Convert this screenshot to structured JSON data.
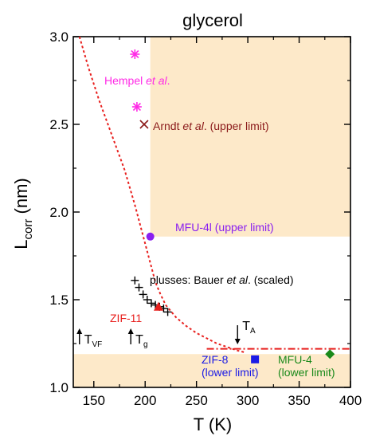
{
  "chart_data": {
    "type": "scatter",
    "title": "glycerol",
    "xlabel": "T (K)",
    "ylabel_main": "L",
    "ylabel_sub": "corr",
    "ylabel_unit": " (nm)",
    "xlim": [
      130,
      400
    ],
    "ylim": [
      1.0,
      3.0
    ],
    "xticks": [
      150,
      200,
      250,
      300,
      350,
      400
    ],
    "yticks": [
      1.0,
      1.5,
      2.0,
      2.5,
      3.0
    ],
    "xtick_labels": [
      "150",
      "200",
      "250",
      "300",
      "350",
      "400"
    ],
    "ytick_labels": [
      "1.0",
      "1.5",
      "2.0",
      "2.5",
      "3.0"
    ],
    "colors": {
      "shade": "#fde9c9",
      "fit": "#e8201e",
      "hempel": "#ff2be6",
      "arndt": "#8b1a1a",
      "mfu4l": "#8a1ff0",
      "bauer": "#000000",
      "zif11": "#e8201e",
      "zif8": "#1a1ae6",
      "mfu4": "#1b8a1b"
    },
    "shaded_regions": [
      {
        "x": [
          205,
          400
        ],
        "y": [
          1.86,
          3.0
        ]
      },
      {
        "x": [
          130,
          400
        ],
        "y": [
          1.0,
          1.19
        ]
      }
    ],
    "fit_curve": {
      "x": [
        136,
        140,
        145,
        150,
        155,
        160,
        165,
        170,
        175,
        180,
        185,
        190,
        195,
        200,
        205,
        210,
        215,
        220,
        230,
        240,
        250,
        260,
        270,
        280,
        290,
        297
      ],
      "y": [
        3.0,
        2.92,
        2.82,
        2.73,
        2.64,
        2.56,
        2.48,
        2.4,
        2.32,
        2.24,
        2.14,
        2.04,
        1.93,
        1.82,
        1.71,
        1.6,
        1.53,
        1.47,
        1.4,
        1.35,
        1.31,
        1.28,
        1.25,
        1.23,
        1.21,
        1.2
      ]
    },
    "fit_line_extension": {
      "x": [
        260,
        400
      ],
      "y": [
        1.22,
        1.22
      ]
    },
    "series": [
      {
        "name": "Hempel et al.",
        "marker": "asterisk",
        "x": [
          190,
          192
        ],
        "y": [
          2.9,
          2.6
        ]
      },
      {
        "name": "Arndt et al. (upper limit)",
        "marker": "x",
        "x": [
          199
        ],
        "y": [
          2.5
        ]
      },
      {
        "name": "MFU-4l (upper limit)",
        "marker": "circle",
        "x": [
          205
        ],
        "y": [
          1.86
        ]
      },
      {
        "name": "plusses: Bauer et al. (scaled)",
        "marker": "plus",
        "x": [
          190,
          194,
          198,
          202,
          206,
          210,
          214,
          218,
          222
        ],
        "y": [
          1.61,
          1.57,
          1.53,
          1.5,
          1.48,
          1.47,
          1.46,
          1.45,
          1.43
        ]
      },
      {
        "name": "ZIF-11",
        "marker": "triangle",
        "x": [
          213
        ],
        "y": [
          1.46
        ]
      },
      {
        "name": "ZIF-8",
        "marker": "square",
        "x": [
          307
        ],
        "y": [
          1.16
        ]
      },
      {
        "name": "MFU-4",
        "marker": "diamond",
        "x": [
          380
        ],
        "y": [
          1.19
        ]
      }
    ],
    "annotations": {
      "hempel": {
        "pre": "Hempel ",
        "em": "et al",
        "post": "."
      },
      "arndt": {
        "pre": "Arndt ",
        "em": "et al",
        "post": ". (upper limit)"
      },
      "mfu4l": {
        "text": "MFU-4l (upper limit)"
      },
      "bauer": {
        "pre": "plusses: Bauer ",
        "em": "et al",
        "post": ". (scaled)"
      },
      "zif11": {
        "text": "ZIF-11"
      },
      "zif8": {
        "line1": "ZIF-8",
        "line2": "(lower limit)"
      },
      "mfu4": {
        "line1": "MFU-4",
        "line2": "(lower limit)"
      },
      "tvf": {
        "main": "T",
        "sub": "VF",
        "x": 136
      },
      "tg": {
        "main": "T",
        "sub": "g",
        "x": 186
      },
      "ta": {
        "main": "T",
        "sub": "A",
        "x": 290
      }
    }
  }
}
